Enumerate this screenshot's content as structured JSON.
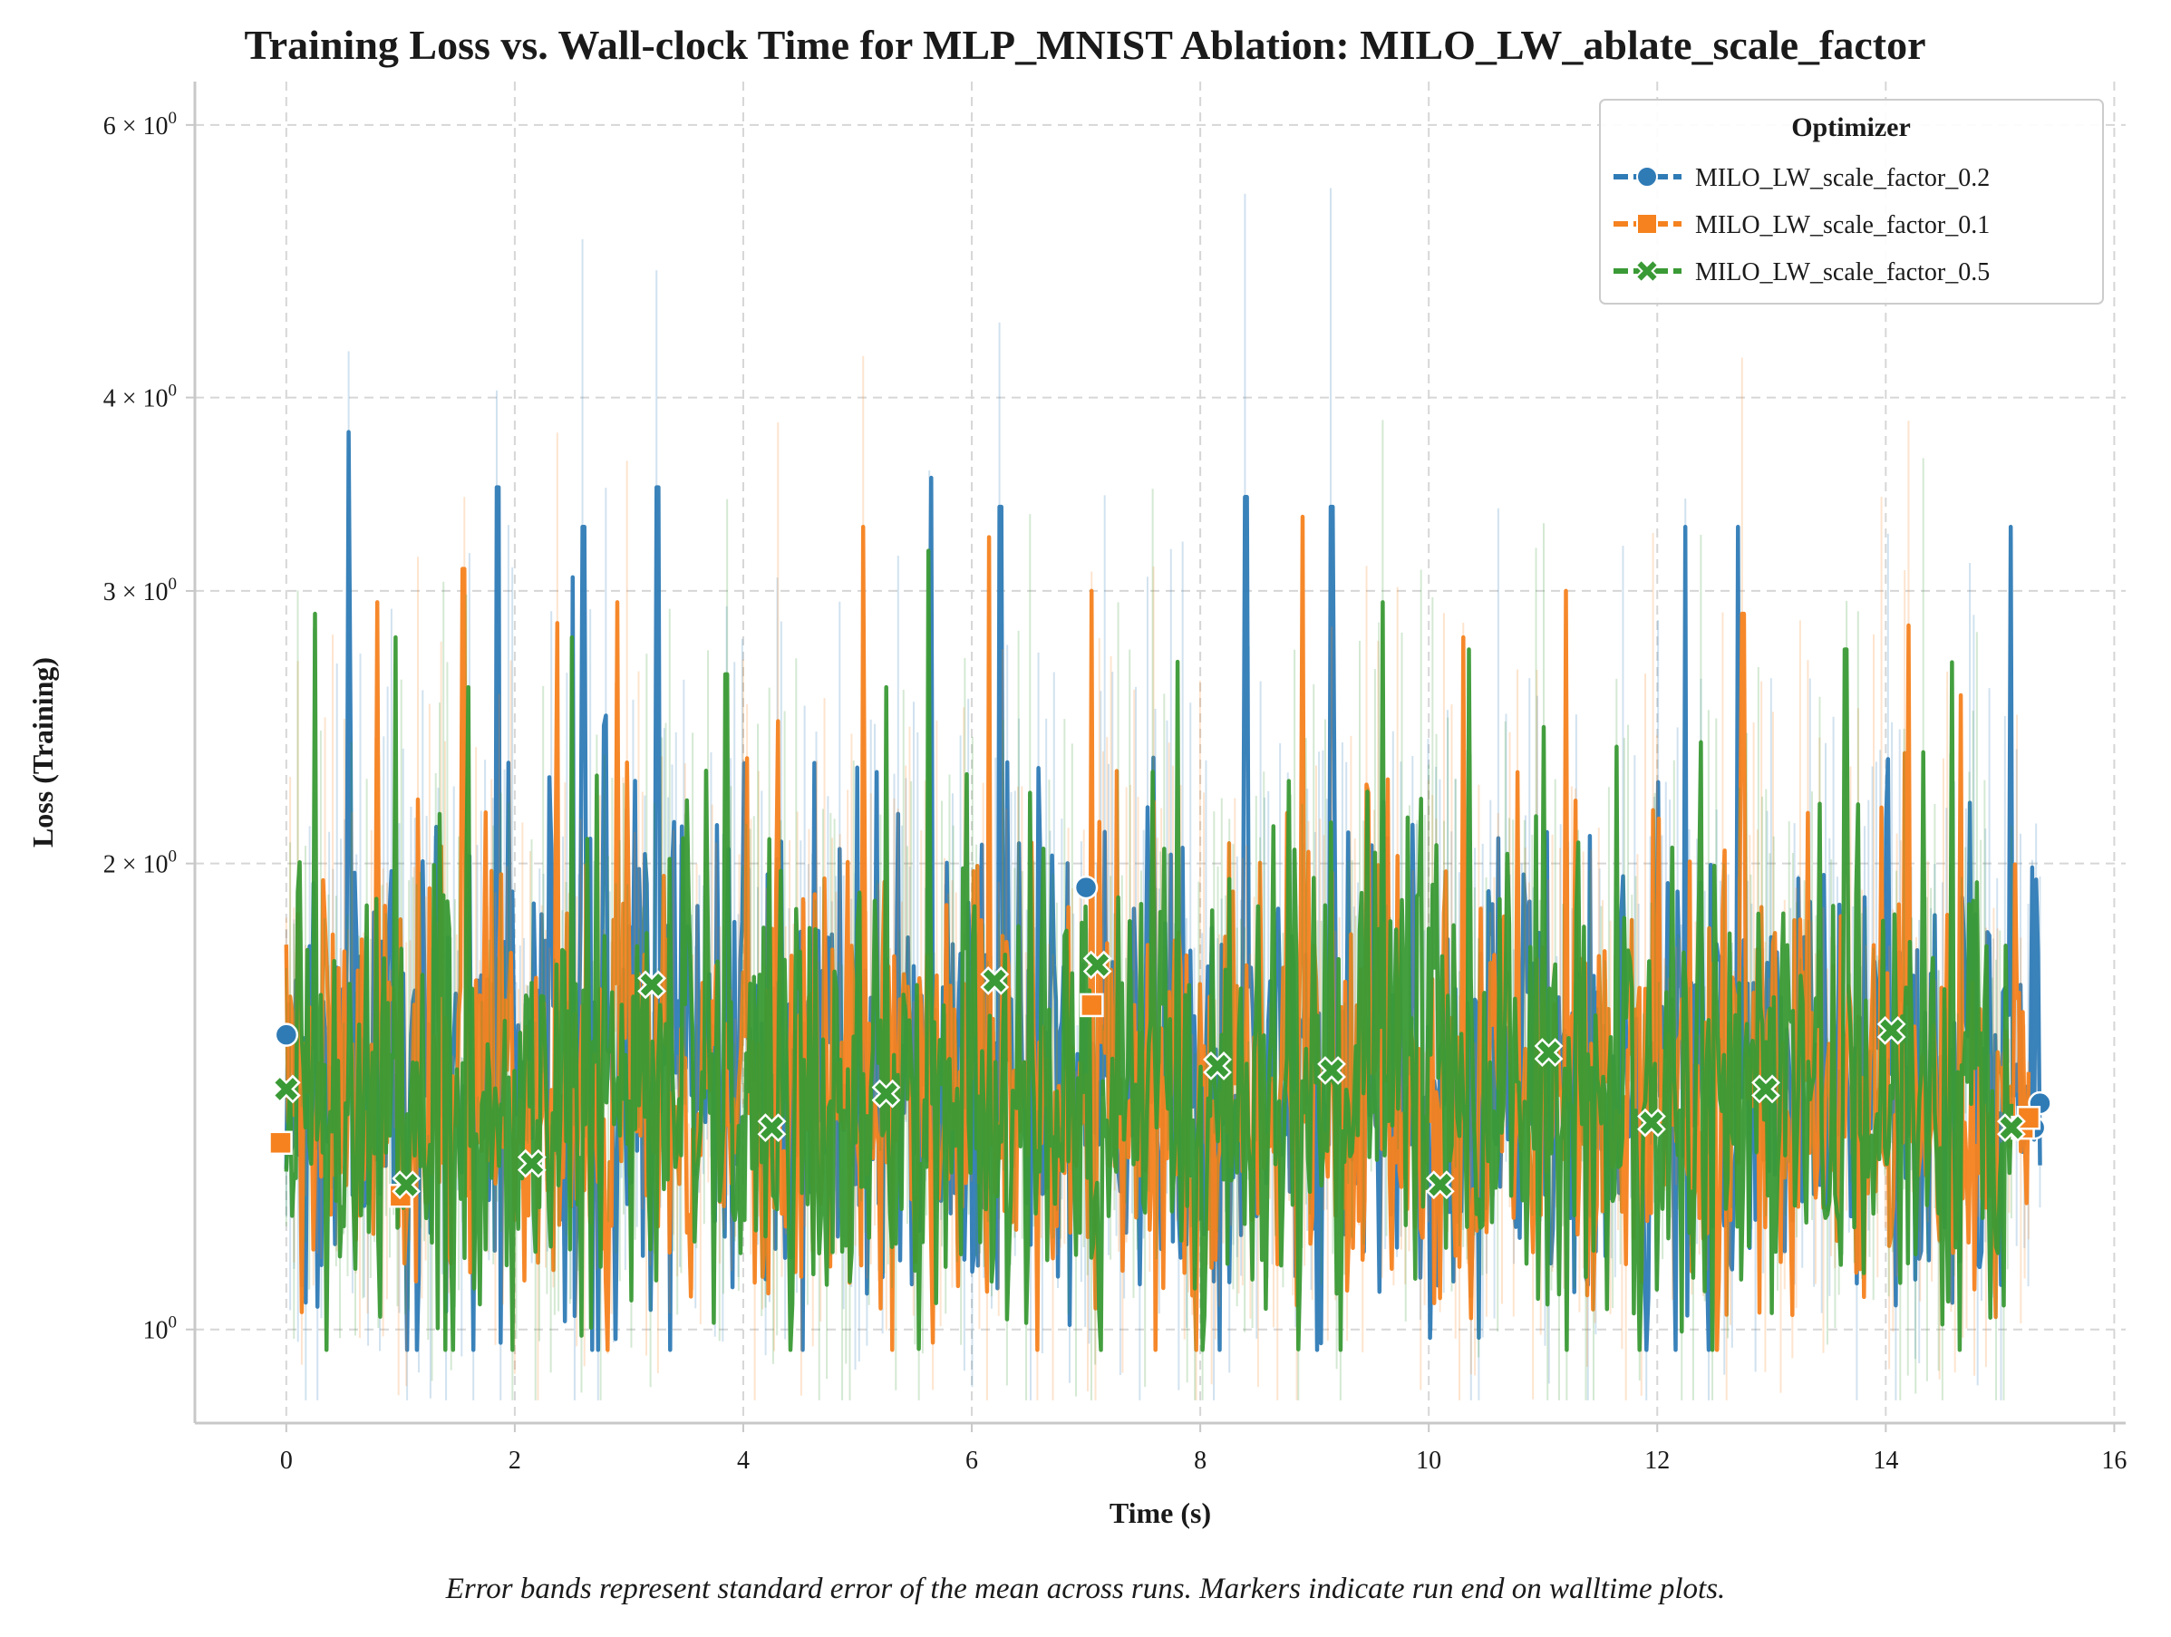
{
  "caption": "Error bands represent standard error of the mean across runs. Markers indicate run end on walltime plots.",
  "chart_data": {
    "type": "line",
    "title": "Training Loss vs. Wall-clock Time for MLP_MNIST Ablation: MILO_LW_ablate_scale_factor",
    "xlabel": "Time (s)",
    "ylabel": "Loss (Training)",
    "xlim": [
      -0.8,
      16.1
    ],
    "ylim": [
      0.87,
      6.4
    ],
    "yscale": "log",
    "grid": true,
    "x_ticks": [
      0,
      2,
      4,
      6,
      8,
      10,
      12,
      14,
      16
    ],
    "y_ticks": [
      {
        "value": 1,
        "base": "10",
        "exp": "0"
      },
      {
        "value": 2,
        "base": "2 × 10",
        "exp": "0"
      },
      {
        "value": 3,
        "base": "3 × 10",
        "exp": "0"
      },
      {
        "value": 4,
        "base": "4 × 10",
        "exp": "0"
      },
      {
        "value": 6,
        "base": "6 × 10",
        "exp": "0"
      }
    ],
    "legend": {
      "title": "Optimizer",
      "position": "top-right"
    },
    "series": [
      {
        "name": "MILO_LW_scale_factor_0.2",
        "color": "#2f7bb6",
        "marker": "circle",
        "x_start": 0.0,
        "x_end": 15.35,
        "base": 1.42,
        "volatility": 0.17,
        "peaks": [
          [
            0.55,
            3.8
          ],
          [
            1.85,
            3.5
          ],
          [
            2.6,
            3.3
          ],
          [
            3.25,
            3.5
          ],
          [
            5.65,
            3.55
          ],
          [
            6.25,
            3.4
          ],
          [
            8.4,
            3.45
          ],
          [
            9.15,
            3.4
          ],
          [
            12.25,
            3.3
          ],
          [
            12.7,
            3.3
          ],
          [
            15.1,
            3.3
          ]
        ],
        "markers": [
          [
            0.0,
            1.55
          ],
          [
            7.0,
            1.93
          ],
          [
            15.3,
            1.35
          ],
          [
            15.35,
            1.4
          ]
        ],
        "band": 0.55
      },
      {
        "name": "MILO_LW_scale_factor_0.1",
        "color": "#f5821f",
        "marker": "square",
        "x_start": 0.0,
        "x_end": 15.25,
        "base": 1.38,
        "volatility": 0.15,
        "peaks": [
          [
            0.8,
            2.95
          ],
          [
            1.15,
            2.2
          ],
          [
            1.55,
            3.1
          ],
          [
            2.9,
            2.95
          ],
          [
            5.05,
            3.3
          ],
          [
            6.15,
            3.25
          ],
          [
            7.05,
            3.0
          ],
          [
            8.9,
            3.35
          ],
          [
            10.3,
            2.8
          ],
          [
            11.2,
            3.0
          ],
          [
            12.75,
            2.9
          ],
          [
            14.2,
            2.85
          ]
        ],
        "markers": [
          [
            -0.05,
            1.32
          ],
          [
            1.0,
            1.22
          ],
          [
            7.05,
            1.62
          ],
          [
            15.2,
            1.35
          ],
          [
            15.25,
            1.37
          ]
        ],
        "band": 0.5
      },
      {
        "name": "MILO_LW_scale_factor_0.5",
        "color": "#3a9a35",
        "marker": "x",
        "x_start": 0.0,
        "x_end": 15.1,
        "base": 1.38,
        "volatility": 0.16,
        "peaks": [
          [
            0.25,
            2.9
          ],
          [
            0.95,
            2.8
          ],
          [
            1.6,
            2.6
          ],
          [
            2.5,
            2.8
          ],
          [
            3.85,
            2.65
          ],
          [
            5.25,
            2.6
          ],
          [
            7.8,
            2.7
          ],
          [
            9.6,
            2.95
          ],
          [
            10.35,
            2.75
          ],
          [
            11.0,
            2.45
          ],
          [
            13.65,
            2.75
          ]
        ],
        "markers": [
          [
            0.0,
            1.43
          ],
          [
            1.05,
            1.24
          ],
          [
            2.15,
            1.28
          ],
          [
            3.2,
            1.67
          ],
          [
            4.25,
            1.35
          ],
          [
            5.25,
            1.42
          ],
          [
            6.2,
            1.68
          ],
          [
            7.1,
            1.72
          ],
          [
            8.15,
            1.48
          ],
          [
            9.15,
            1.47
          ],
          [
            10.1,
            1.24
          ],
          [
            11.05,
            1.51
          ],
          [
            11.95,
            1.36
          ],
          [
            12.95,
            1.43
          ],
          [
            14.05,
            1.56
          ],
          [
            15.1,
            1.35
          ]
        ],
        "band": 0.5
      }
    ]
  }
}
